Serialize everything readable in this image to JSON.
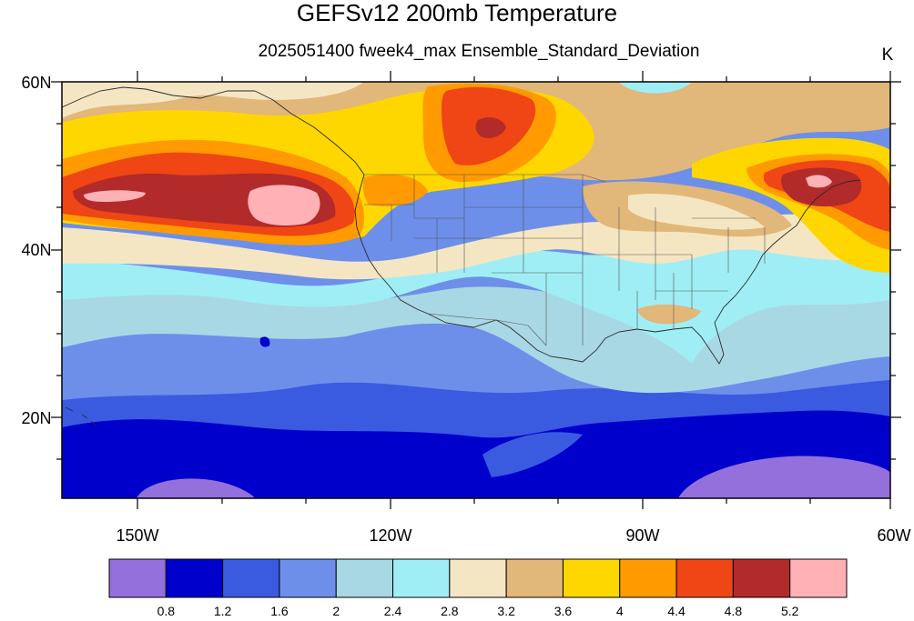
{
  "title": "GEFSv12 200mb Temperature",
  "subtitle": "2025051400 fweek4_max Ensemble_Standard_Deviation",
  "units": "K",
  "lat_ticks": [
    "60N",
    "40N",
    "20N"
  ],
  "lon_ticks": [
    "150W",
    "120W",
    "90W",
    "60W"
  ],
  "colorbar": {
    "levels": [
      "0.8",
      "1.2",
      "1.6",
      "2",
      "2.4",
      "2.8",
      "3.2",
      "3.6",
      "4",
      "4.4",
      "4.8",
      "5.2"
    ],
    "colors": [
      "#9370DB",
      "#0000CD",
      "#3A5BE0",
      "#6D8FEA",
      "#A8D8E4",
      "#A0EEF5",
      "#F5E6C3",
      "#E2B77A",
      "#FFD700",
      "#FF9B00",
      "#F04514",
      "#B22A2A",
      "#FFB1B6"
    ]
  },
  "map_colors": {
    "background": "#6D8FEA",
    "lowest": "#9370DB",
    "very_low": "#0000CD",
    "low": "#3A5BE0",
    "moderate": "#A8D8E4",
    "light": "#A0EEF5",
    "cream": "#F5E6C3",
    "tan": "#E2B77A",
    "yellow": "#FFD700",
    "orange": "#FF9B00",
    "red": "#F04514",
    "darkred": "#B22A2A",
    "pink": "#FFB1B6"
  }
}
